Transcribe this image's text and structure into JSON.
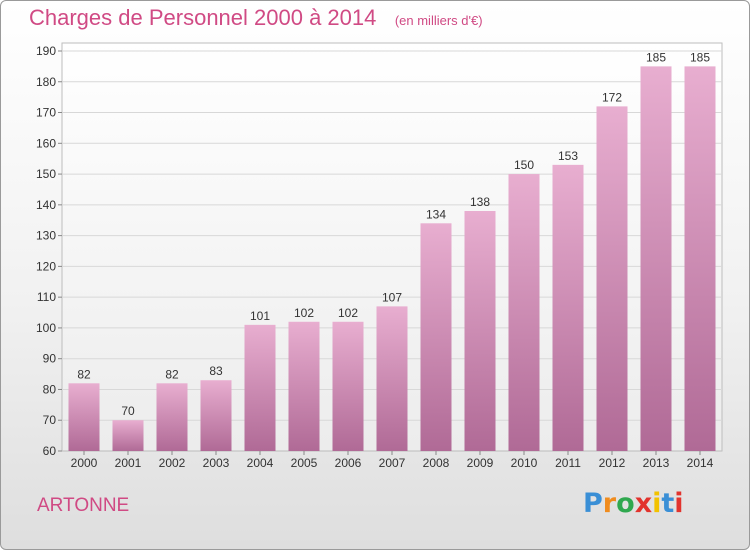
{
  "header": {
    "title": "Charges de Personnel 2000 à 2014",
    "subtitle": "(en milliers d'€)"
  },
  "footer": {
    "commune": "ARTONNE",
    "logo_text": "Proxiti"
  },
  "colors": {
    "title": "#d04a84",
    "bar_top": "#e8aed0",
    "bar_bottom": "#b06a96",
    "grid": "#d8d8d8",
    "axis_text": "#333333"
  },
  "chart_data": {
    "type": "bar",
    "title": "Charges de Personnel 2000 à 2014",
    "subtitle": "(en milliers d'€)",
    "categories": [
      "2000",
      "2001",
      "2002",
      "2003",
      "2004",
      "2005",
      "2006",
      "2007",
      "2008",
      "2009",
      "2010",
      "2011",
      "2012",
      "2013",
      "2014"
    ],
    "values": [
      82,
      70,
      82,
      83,
      101,
      102,
      102,
      107,
      134,
      138,
      150,
      153,
      172,
      185,
      185
    ],
    "ylim": [
      60,
      190
    ],
    "yticks": [
      60,
      70,
      80,
      90,
      100,
      110,
      120,
      130,
      140,
      150,
      160,
      170,
      180,
      190
    ],
    "grid": true,
    "data_labels": true
  }
}
